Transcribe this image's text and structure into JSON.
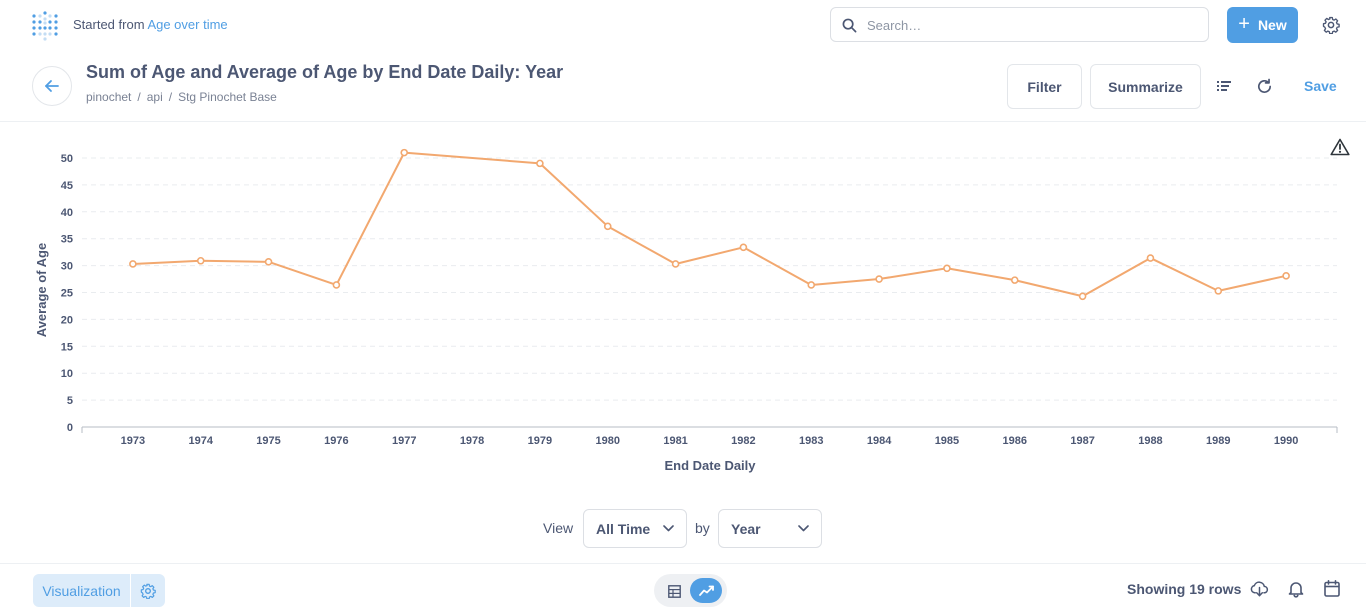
{
  "header": {
    "started_prefix": "Started from",
    "started_link": "Age over time",
    "search_placeholder": "Search…",
    "new_label": "New"
  },
  "question": {
    "title": "Sum of Age and Average of Age by End Date Daily: Year",
    "breadcrumb": [
      "pinochet",
      "api",
      "Stg Pinochet Base"
    ],
    "filter_label": "Filter",
    "summarize_label": "Summarize",
    "save_label": "Save"
  },
  "icons": {
    "logo": "metabase-logo-icon",
    "search": "search-icon",
    "new": "plus-icon",
    "settings": "gear-icon",
    "back": "arrow-left-icon",
    "list": "list-icon",
    "refresh": "refresh-icon",
    "warning": "warning-icon",
    "table": "table-icon",
    "line": "line-chart-icon",
    "download": "cloud-download-icon",
    "alert": "bell-icon",
    "schedule": "calendar-icon"
  },
  "chart_data": {
    "type": "line",
    "x": [
      "1973",
      "1974",
      "1975",
      "1976",
      "1977",
      "1978",
      "1979",
      "1980",
      "1981",
      "1982",
      "1983",
      "1984",
      "1985",
      "1986",
      "1987",
      "1988",
      "1989",
      "1990"
    ],
    "series": [
      {
        "values": [
          30.3,
          30.9,
          30.7,
          26.4,
          51.0,
          null,
          49.0,
          37.3,
          30.3,
          33.4,
          26.4,
          27.5,
          29.5,
          27.3,
          24.3,
          31.4,
          25.3,
          28.1
        ],
        "color": "#f2a86f"
      }
    ],
    "xlabel": "End Date Daily",
    "ylabel": "Average of Age",
    "ylim": [
      0,
      50
    ],
    "yticks": [
      0,
      5,
      10,
      15,
      20,
      25,
      30,
      35,
      40,
      45,
      50
    ],
    "grid": true
  },
  "view": {
    "view_label": "View",
    "time_value": "All Time",
    "by_label": "by",
    "unit_value": "Year"
  },
  "footer": {
    "visualization_label": "Visualization",
    "rows_text": "Showing 19 rows"
  },
  "colors": {
    "brand": "#509ee3",
    "series": "#f2a86f",
    "text": "#4c5773"
  }
}
